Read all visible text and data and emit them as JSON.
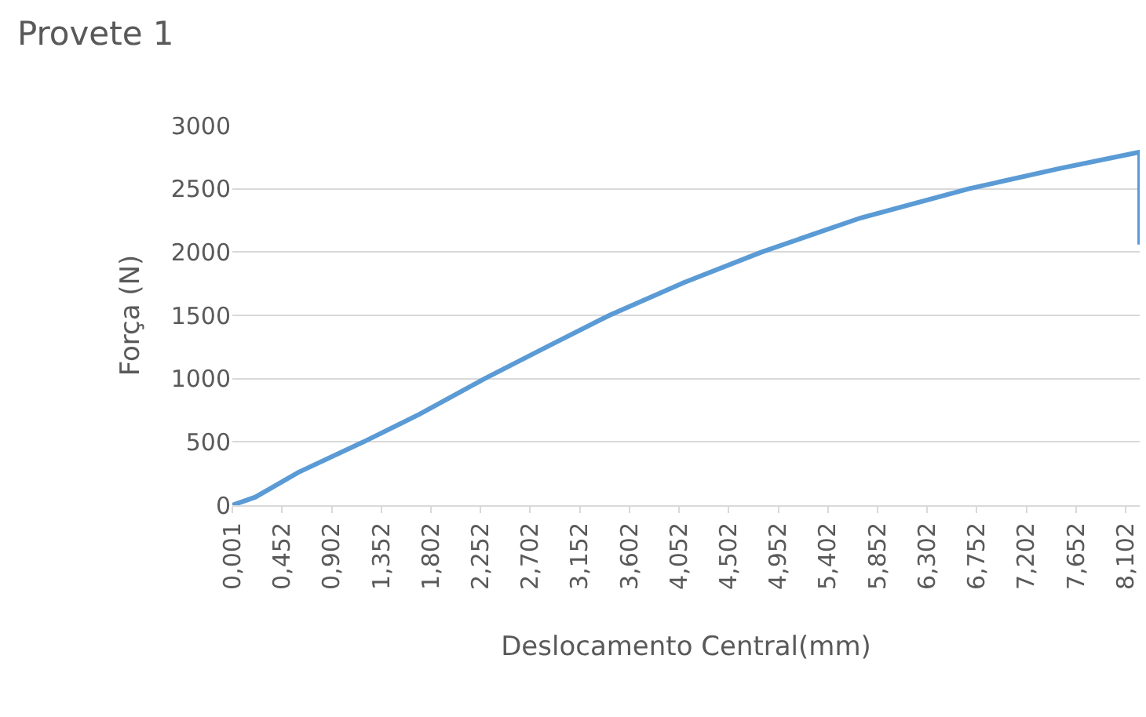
{
  "chart_data": {
    "type": "line",
    "title": "Provete 1",
    "xlabel": "Deslocamento Central(mm)",
    "ylabel": "Força (N)",
    "x": [
      0.001,
      0.1,
      0.21,
      0.6,
      1.19,
      1.7,
      2.29,
      2.85,
      3.42,
      4.1,
      4.8,
      5.7,
      6.68,
      7.5,
      8.23,
      8.23
    ],
    "series": [
      {
        "color": "#5b9bd5",
        "values": [
          0,
          30,
          64,
          260,
          500,
          720,
          1000,
          1250,
          1500,
          1760,
          2000,
          2270,
          2500,
          2660,
          2790,
          2060
        ]
      }
    ],
    "xlim": [
      0.001,
      8.23
    ],
    "xticks": [
      {
        "value": 0.001,
        "label": "0,001"
      },
      {
        "value": 0.452,
        "label": "0,452"
      },
      {
        "value": 0.902,
        "label": "0,902"
      },
      {
        "value": 1.352,
        "label": "1,352"
      },
      {
        "value": 1.802,
        "label": "1,802"
      },
      {
        "value": 2.252,
        "label": "2,252"
      },
      {
        "value": 2.702,
        "label": "2,702"
      },
      {
        "value": 3.152,
        "label": "3,152"
      },
      {
        "value": 3.602,
        "label": "3,602"
      },
      {
        "value": 4.052,
        "label": "4,052"
      },
      {
        "value": 4.502,
        "label": "4,502"
      },
      {
        "value": 4.952,
        "label": "4,952"
      },
      {
        "value": 5.402,
        "label": "5,402"
      },
      {
        "value": 5.852,
        "label": "5,852"
      },
      {
        "value": 6.302,
        "label": "6,302"
      },
      {
        "value": 6.752,
        "label": "6,752"
      },
      {
        "value": 7.202,
        "label": "7,202"
      },
      {
        "value": 7.652,
        "label": "7,652"
      },
      {
        "value": 8.102,
        "label": "8,102"
      }
    ],
    "ylim": [
      0,
      3000
    ],
    "yticks": [
      0,
      500,
      1000,
      1500,
      2000,
      2500,
      3000
    ],
    "grid": "y",
    "marker": "none",
    "line_style": "solid",
    "legend": false
  }
}
